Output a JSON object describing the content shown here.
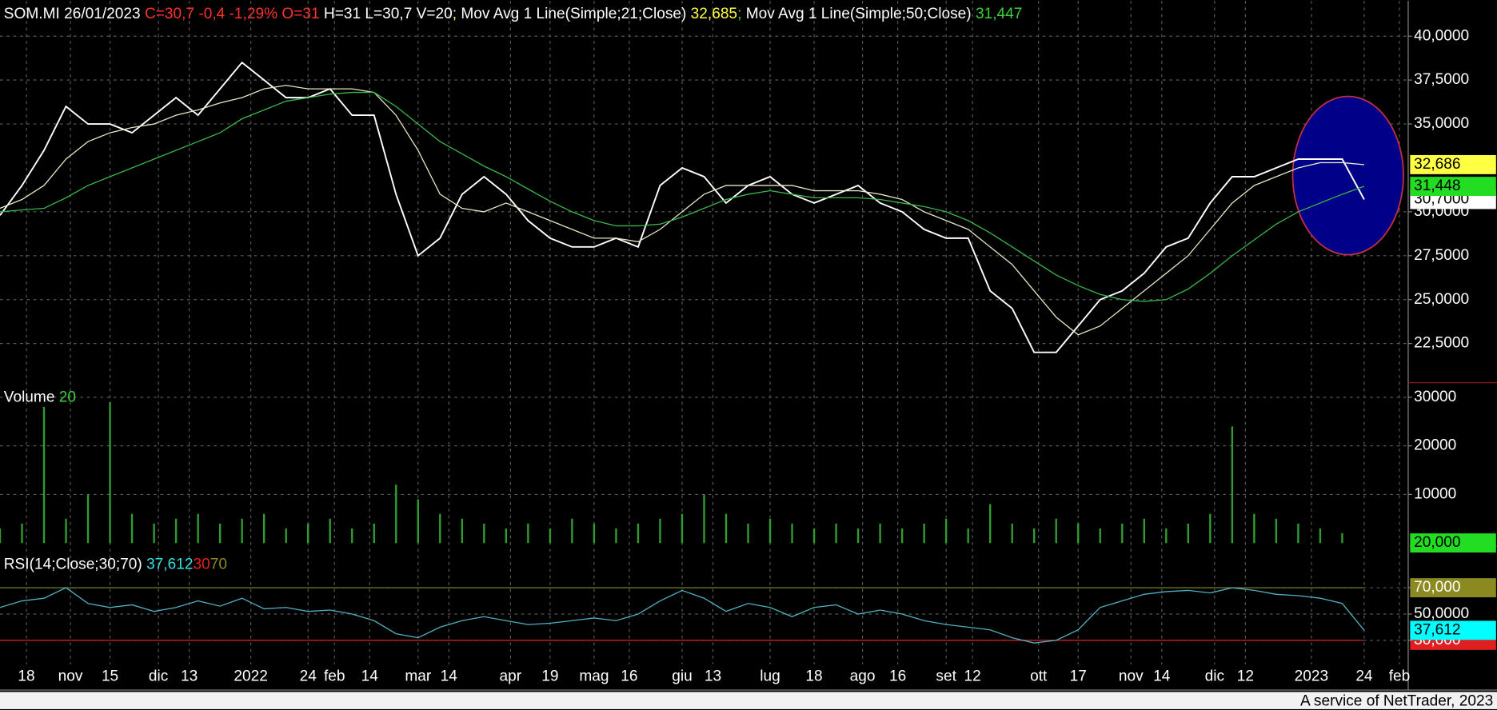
{
  "chart_data": [
    {
      "type": "line",
      "header": [
        {
          "text": "SOM.MI 26/01/2023 ",
          "color": "#ffffff"
        },
        {
          "text": "C=30,7 -0,4 -1,29% O=31 ",
          "color": "#ff3030"
        },
        {
          "text": "H=31 L=30,7 V=20",
          "color": "#ffffff"
        },
        {
          "text": "; ",
          "color": "#ffff44"
        },
        {
          "text": "Mov Avg 1 Line(Simple;21;Close) ",
          "color": "#ffffff"
        },
        {
          "text": "32,685",
          "color": "#ffff44"
        },
        {
          "text": "; ",
          "color": "#39d039"
        },
        {
          "text": "Mov Avg 1 Line(Simple;50;Close) ",
          "color": "#ffffff"
        },
        {
          "text": "31,447",
          "color": "#39d039"
        }
      ],
      "xlim": [
        0,
        320
      ],
      "xticks": [
        {
          "value": 6,
          "label": "18"
        },
        {
          "value": 16,
          "label": "nov"
        },
        {
          "value": 25,
          "label": "15"
        },
        {
          "value": 36,
          "label": "dic"
        },
        {
          "value": 43,
          "label": "13"
        },
        {
          "value": 57,
          "label": "2022"
        },
        {
          "value": 70,
          "label": "24"
        },
        {
          "value": 76,
          "label": "feb"
        },
        {
          "value": 84,
          "label": "14"
        },
        {
          "value": 95,
          "label": "mar"
        },
        {
          "value": 102,
          "label": "14"
        },
        {
          "value": 116,
          "label": "apr"
        },
        {
          "value": 125,
          "label": "19"
        },
        {
          "value": 135,
          "label": "mag"
        },
        {
          "value": 143,
          "label": "16"
        },
        {
          "value": 155,
          "label": "giu"
        },
        {
          "value": 162,
          "label": "13"
        },
        {
          "value": 175,
          "label": "lug"
        },
        {
          "value": 185,
          "label": "18"
        },
        {
          "value": 196,
          "label": "ago"
        },
        {
          "value": 204,
          "label": "16"
        },
        {
          "value": 215,
          "label": "set"
        },
        {
          "value": 221,
          "label": "12"
        },
        {
          "value": 236,
          "label": "ott"
        },
        {
          "value": 245,
          "label": "17"
        },
        {
          "value": 257,
          "label": "nov"
        },
        {
          "value": 264,
          "label": "14"
        },
        {
          "value": 276,
          "label": "dic"
        },
        {
          "value": 283,
          "label": "12"
        },
        {
          "value": 298,
          "label": "2023"
        },
        {
          "value": 310,
          "label": "24"
        },
        {
          "value": 318,
          "label": "feb"
        }
      ],
      "ylim": [
        20.27,
        42.01
      ],
      "yticks": [
        {
          "value": 40,
          "label": "40,0000"
        },
        {
          "value": 37.5,
          "label": "37,5000"
        },
        {
          "value": 35,
          "label": "35,0000"
        },
        {
          "value": 30,
          "label": "30,0000"
        },
        {
          "value": 27.5,
          "label": "27,5000"
        },
        {
          "value": 25,
          "label": "25,0000"
        },
        {
          "value": 22.5,
          "label": "22,5000"
        }
      ],
      "grid": true,
      "x": [
        0,
        5,
        10,
        15,
        20,
        25,
        30,
        35,
        40,
        45,
        50,
        55,
        60,
        65,
        70,
        75,
        80,
        85,
        90,
        95,
        100,
        105,
        110,
        115,
        120,
        125,
        130,
        135,
        140,
        145,
        150,
        155,
        160,
        165,
        170,
        175,
        180,
        185,
        190,
        195,
        200,
        205,
        210,
        215,
        220,
        225,
        230,
        235,
        240,
        245,
        250,
        255,
        260,
        265,
        270,
        275,
        280,
        285,
        290,
        295,
        300,
        305,
        310
      ],
      "series": [
        {
          "name": "Close",
          "color": "#ffffff",
          "label_color": "#ffffff",
          "last_label": "30,7000",
          "values": [
            29.8,
            31.5,
            33.5,
            36,
            35,
            35,
            34.5,
            35.5,
            36.5,
            35.5,
            37,
            38.5,
            37.5,
            36.5,
            36.5,
            37,
            35.5,
            35.5,
            31,
            27.5,
            28.5,
            31,
            32,
            31,
            29.5,
            28.5,
            28,
            28,
            28.5,
            28,
            31.5,
            32.5,
            32,
            30.5,
            31.5,
            32,
            31,
            30.5,
            31,
            31.5,
            30.5,
            30,
            29,
            28.5,
            28.5,
            25.5,
            24.5,
            22,
            22,
            23.5,
            25,
            25.5,
            26.5,
            28,
            28.5,
            30.5,
            32,
            32,
            32.5,
            33,
            33,
            33,
            30.7
          ]
        },
        {
          "name": "Mov Avg 21",
          "color": "#dfe8c0",
          "label_color": "#ffff44",
          "last_label": "32,686",
          "values": [
            30.2,
            30.7,
            31.5,
            33,
            34,
            34.5,
            34.8,
            35,
            35.5,
            35.8,
            36.2,
            36.5,
            37,
            37.2,
            37,
            37,
            37,
            36.8,
            35.5,
            33.5,
            31,
            30.2,
            30,
            30.5,
            30,
            29.5,
            29,
            28.5,
            28.5,
            28.3,
            29,
            30,
            31,
            31.5,
            31.5,
            31.5,
            31.5,
            31.2,
            31.2,
            31.2,
            31,
            30.7,
            30,
            29.5,
            29,
            28,
            27,
            25.5,
            24,
            23,
            23.5,
            24.5,
            25.5,
            26.5,
            27.5,
            29,
            30.5,
            31.5,
            32,
            32.5,
            32.8,
            32.8,
            32.6855
          ]
        },
        {
          "name": "Mov Avg 50",
          "color": "#39b54a",
          "label_color": "#22dd22",
          "last_label": "31,448",
          "values": [
            30,
            30.1,
            30.2,
            30.8,
            31.5,
            32,
            32.5,
            33,
            33.5,
            34,
            34.5,
            35.3,
            35.8,
            36.3,
            36.5,
            36.7,
            36.8,
            36.8,
            36,
            35,
            34,
            33.3,
            32.6,
            32,
            31.3,
            30.6,
            30,
            29.5,
            29.2,
            29.2,
            29.3,
            29.7,
            30.2,
            30.7,
            31,
            31.2,
            31,
            30.8,
            30.8,
            30.8,
            30.7,
            30.5,
            30.3,
            30,
            29.5,
            28.8,
            28,
            27.2,
            26.4,
            25.8,
            25.3,
            25,
            24.9,
            25,
            25.6,
            26.5,
            27.5,
            28.4,
            29.3,
            30,
            30.5,
            31,
            31.4475
          ]
        }
      ]
    },
    {
      "type": "bar",
      "header": [
        {
          "text": "Volume ",
          "color": "#ffffff"
        },
        {
          "text": "20",
          "color": "#39d039"
        }
      ],
      "ylim": [
        0,
        33000
      ],
      "yticks": [
        30000,
        20000,
        10000
      ],
      "grid": true,
      "x": [
        0,
        5,
        10,
        15,
        20,
        25,
        30,
        35,
        40,
        45,
        50,
        55,
        60,
        65,
        70,
        75,
        80,
        85,
        90,
        95,
        100,
        105,
        110,
        115,
        120,
        125,
        130,
        135,
        140,
        145,
        150,
        155,
        160,
        165,
        170,
        175,
        180,
        185,
        190,
        195,
        200,
        205,
        210,
        215,
        220,
        225,
        230,
        235,
        240,
        245,
        250,
        255,
        260,
        265,
        270,
        275,
        280,
        285,
        290,
        295,
        300,
        305,
        310
      ],
      "series": [
        {
          "name": "Volume",
          "color": "#2f9e2f",
          "label_color": "#22dd22",
          "last_label": "20,000",
          "values": [
            3000,
            4000,
            28000,
            5000,
            10000,
            29000,
            6000,
            4000,
            5000,
            6000,
            4000,
            5000,
            6000,
            3000,
            4000,
            5000,
            3000,
            4000,
            12000,
            9000,
            6000,
            5000,
            4000,
            3000,
            4000,
            3000,
            5000,
            4000,
            3000,
            4000,
            5000,
            6000,
            10000,
            6000,
            4000,
            5000,
            4000,
            3000,
            4000,
            3000,
            4000,
            3000,
            4000,
            5000,
            3000,
            8000,
            4000,
            3000,
            5000,
            4000,
            3000,
            4000,
            5000,
            3000,
            4000,
            6000,
            24000,
            6000,
            5000,
            4000,
            3000,
            2000,
            20
          ]
        }
      ]
    },
    {
      "type": "line",
      "header": [
        {
          "text": "RSI(14;Close;30;70) ",
          "color": "#ffffff"
        },
        {
          "text": "37,612",
          "color": "#33e0e0"
        }
      ],
      "levels": [
        {
          "value": 30,
          "color": "#e02020"
        },
        {
          "value": 70,
          "color": "#8a8a20"
        }
      ],
      "ylim": [
        11.8,
        98.9
      ],
      "yticks": [
        {
          "value": 70,
          "label": "70,000"
        },
        {
          "value": 50,
          "label": "50,0000"
        },
        {
          "value": 30,
          "label": "30,000"
        }
      ],
      "grid": true,
      "x": [
        0,
        5,
        10,
        15,
        20,
        25,
        30,
        35,
        40,
        45,
        50,
        55,
        60,
        65,
        70,
        75,
        80,
        85,
        90,
        95,
        100,
        105,
        110,
        115,
        120,
        125,
        130,
        135,
        140,
        145,
        150,
        155,
        160,
        165,
        170,
        175,
        180,
        185,
        190,
        195,
        200,
        205,
        210,
        215,
        220,
        225,
        230,
        235,
        240,
        245,
        250,
        255,
        260,
        265,
        270,
        275,
        280,
        285,
        290,
        295,
        300,
        305,
        310
      ],
      "series": [
        {
          "name": "RSI",
          "color": "#4fb0c0",
          "label_color": "#00ffff",
          "last_label": "37,612",
          "values": [
            55,
            60,
            62,
            70,
            58,
            55,
            57,
            52,
            55,
            60,
            56,
            62,
            54,
            55,
            52,
            53,
            50,
            45,
            35,
            32,
            40,
            45,
            48,
            45,
            42,
            43,
            45,
            47,
            45,
            50,
            60,
            68,
            62,
            52,
            58,
            55,
            48,
            55,
            57,
            50,
            53,
            50,
            45,
            42,
            40,
            38,
            32,
            28,
            30,
            38,
            55,
            60,
            65,
            67,
            68,
            66,
            70,
            68,
            65,
            64,
            62,
            58,
            37.612
          ]
        }
      ]
    }
  ],
  "footer": "A service of NetTrader, 2023"
}
